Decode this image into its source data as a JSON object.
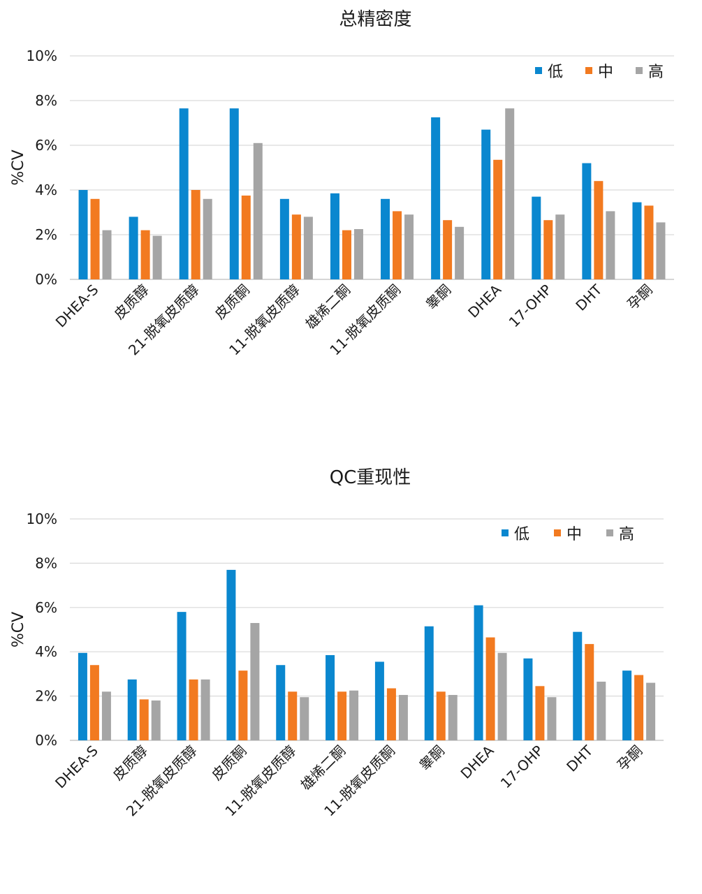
{
  "colors": {
    "low": "#0a87cf",
    "mid": "#f27a20",
    "high": "#a5a5a5"
  },
  "chart_data": [
    {
      "type": "bar",
      "title": "总精密度",
      "ylabel": "%CV",
      "xlabel": "",
      "ylim": [
        0,
        10
      ],
      "yticks": [
        "0%",
        "2%",
        "4%",
        "6%",
        "8%",
        "10%"
      ],
      "legend_position": "top-right",
      "grid": true,
      "categories": [
        "DHEA-S",
        "皮质醇",
        "21-脱氧皮质醇",
        "皮质酮",
        "11-脱氧皮质醇",
        "雄烯二酮",
        "11-脱氧皮质酮",
        "睾酮",
        "DHEA",
        "17-OHP",
        "DHT",
        "孕酮"
      ],
      "series": [
        {
          "name": "低",
          "color": "#0a87cf",
          "values": [
            4.0,
            2.8,
            7.65,
            7.65,
            3.6,
            3.85,
            3.6,
            7.25,
            6.7,
            3.7,
            5.2,
            3.45
          ]
        },
        {
          "name": "中",
          "color": "#f27a20",
          "values": [
            3.6,
            2.2,
            4.0,
            3.75,
            2.9,
            2.2,
            3.05,
            2.65,
            5.35,
            2.65,
            4.4,
            3.3
          ]
        },
        {
          "name": "高",
          "color": "#a5a5a5",
          "values": [
            2.2,
            1.95,
            3.6,
            6.1,
            2.8,
            2.25,
            2.9,
            2.35,
            7.65,
            2.9,
            3.05,
            2.55
          ]
        }
      ]
    },
    {
      "type": "bar",
      "title": "QC重现性",
      "ylabel": "%CV",
      "xlabel": "",
      "ylim": [
        0,
        10
      ],
      "yticks": [
        "0%",
        "2%",
        "4%",
        "6%",
        "8%",
        "10%"
      ],
      "legend_position": "top-right",
      "grid": true,
      "categories": [
        "DHEA-S",
        "皮质醇",
        "21-脱氧皮质醇",
        "皮质酮",
        "11-脱氧皮质醇",
        "雄烯二酮",
        "11-脱氧皮质酮",
        "睾酮",
        "DHEA",
        "17-OHP",
        "DHT",
        "孕酮"
      ],
      "series": [
        {
          "name": "低",
          "color": "#0a87cf",
          "values": [
            3.95,
            2.75,
            5.8,
            7.7,
            3.4,
            3.85,
            3.55,
            5.15,
            6.1,
            3.7,
            4.9,
            3.15
          ]
        },
        {
          "name": "中",
          "color": "#f27a20",
          "values": [
            3.4,
            1.85,
            2.75,
            3.15,
            2.2,
            2.2,
            2.35,
            2.2,
            4.65,
            2.45,
            4.35,
            2.95
          ]
        },
        {
          "name": "高",
          "color": "#a5a5a5",
          "values": [
            2.2,
            1.8,
            2.75,
            5.3,
            1.95,
            2.25,
            2.05,
            2.05,
            3.95,
            1.95,
            2.65,
            2.6
          ]
        }
      ]
    }
  ]
}
